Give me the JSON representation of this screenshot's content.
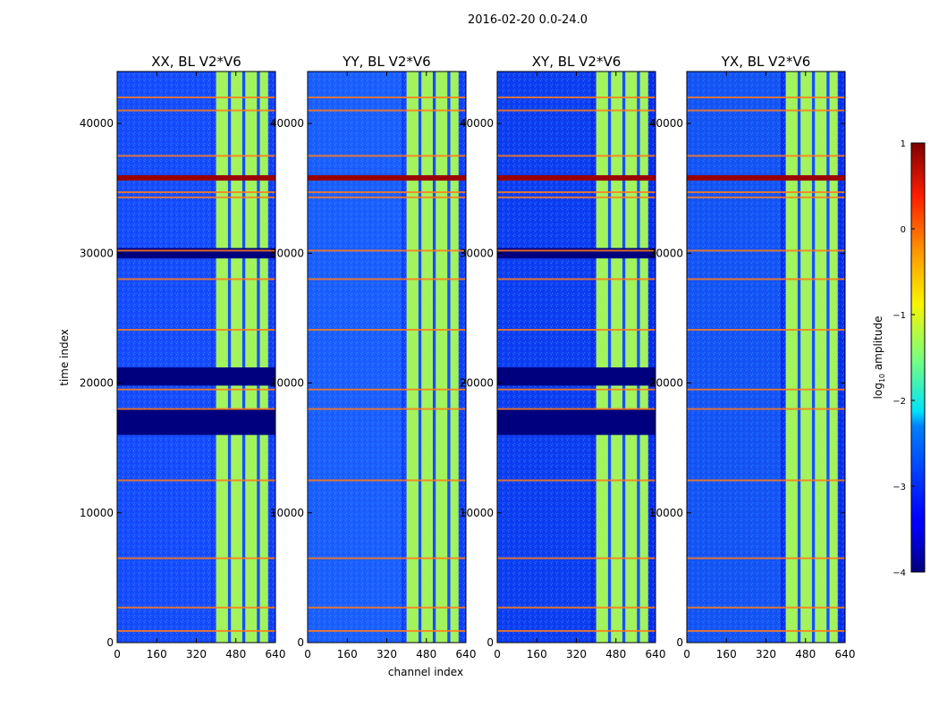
{
  "figure_title": "2016-02-20 0.0-24.0",
  "chart_data": {
    "type": "heatmap",
    "suptitle": "2016-02-20 0.0-24.0",
    "xlabel": "channel index",
    "ylabel": "time index",
    "xlim": [
      0,
      640
    ],
    "ylim": [
      0,
      44000
    ],
    "xticks": [
      0,
      160,
      320,
      480,
      640
    ],
    "yticks": [
      0,
      10000,
      20000,
      30000,
      40000
    ],
    "xtick_labels": [
      "0",
      "160",
      "320",
      "480",
      "640"
    ],
    "ytick_labels": [
      "0",
      "10000",
      "20000",
      "30000",
      "40000"
    ],
    "colorbar": {
      "label": "log10 amplitude",
      "label_main": "log",
      "label_sub": "10",
      "label_tail": " amplitude",
      "colormap": "jet",
      "range": [
        -4,
        1
      ],
      "ticks": [
        1,
        0,
        -1,
        -2,
        -3,
        -4
      ],
      "tick_labels": [
        "1",
        "0",
        "−1",
        "−2",
        "−3",
        "−4"
      ]
    },
    "panels": [
      {
        "title": "XX, BL V2*V6",
        "pol": "XX",
        "baseline": "V2*V6"
      },
      {
        "title": "YY, BL V2*V6",
        "pol": "YY",
        "baseline": "V2*V6"
      },
      {
        "title": "XY, BL V2*V6",
        "pol": "XY",
        "baseline": "V2*V6"
      },
      {
        "title": "YX, BL V2*V6",
        "pol": "YX",
        "baseline": "V2*V6"
      }
    ],
    "features": {
      "bright_channel_band": [
        400,
        610
      ],
      "band_gap_channels": [
        448,
        506,
        565
      ],
      "flagged_time_rows": [
        900,
        2700,
        6500,
        12500,
        18000,
        19500,
        24100,
        28000,
        30200,
        34300,
        34700,
        37500,
        41000,
        42000
      ],
      "saturated_time_row": 35800,
      "flagged_blocks_XX_XY": [
        [
          16000,
          18000
        ],
        [
          19800,
          21200
        ],
        [
          29600,
          30400
        ]
      ]
    }
  }
}
